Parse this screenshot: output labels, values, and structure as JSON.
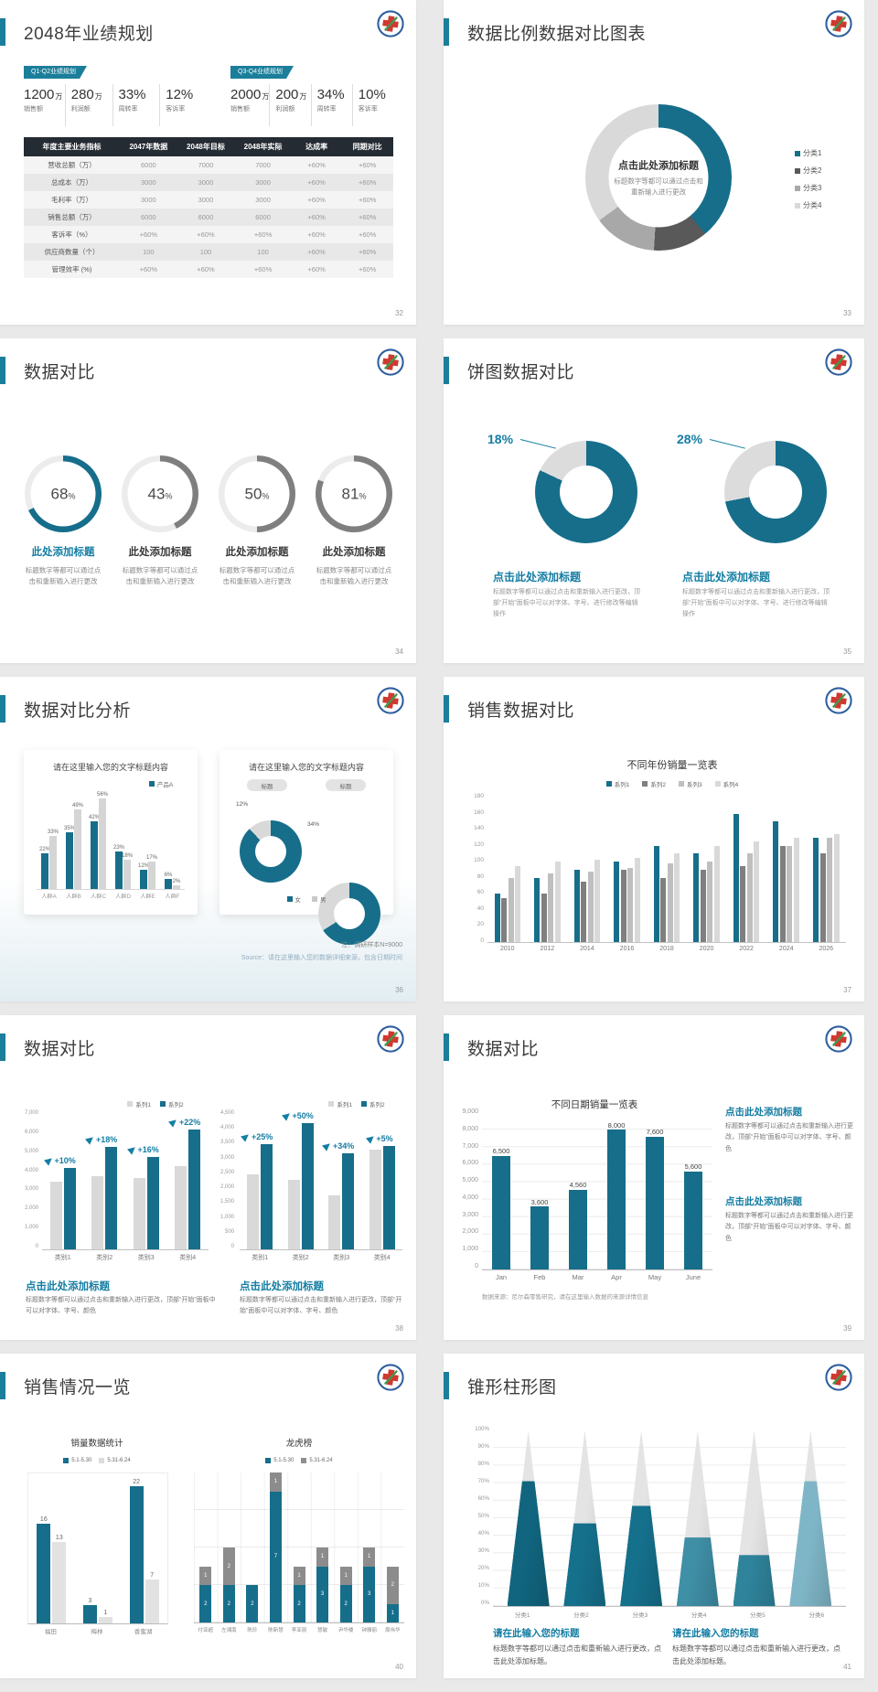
{
  "palette": {
    "teal": "#166e8b",
    "tealText": "#147da3",
    "accent": "#1b7e9b",
    "grayDark": "#595959",
    "gray": "#7f7f7f",
    "grayMid": "#a8a8a8",
    "grayLight": "#d9d9d9",
    "ringRest": "#ececec",
    "tableHeaderBg": "#242b33",
    "pageBg": "#e9e9e9"
  },
  "logo_icon": "medical-cross-badge",
  "slides": [
    {
      "page": "32",
      "title": "2048年业绩规划",
      "groups": [
        {
          "badge": "Q1-Q2业绩规划",
          "stats": [
            {
              "value": "1200",
              "unit": "万",
              "label": "销售额"
            },
            {
              "value": "280",
              "unit": "万",
              "label": "利润额"
            },
            {
              "value": "33%",
              "unit": "",
              "label": "周转率"
            },
            {
              "value": "12%",
              "unit": "",
              "label": "客诉率"
            }
          ]
        },
        {
          "badge": "Q3-Q4业绩规划",
          "stats": [
            {
              "value": "2000",
              "unit": "万",
              "label": "销售额"
            },
            {
              "value": "200",
              "unit": "万",
              "label": "利润额"
            },
            {
              "value": "34%",
              "unit": "",
              "label": "周转率"
            },
            {
              "value": "10%",
              "unit": "",
              "label": "客诉率"
            }
          ]
        }
      ],
      "table": {
        "headers": [
          "年度主要业务指标",
          "2047年数据",
          "2048年目标",
          "2048年实际",
          "达成率",
          "同期对比"
        ],
        "rows": [
          [
            "营收总额（万）",
            "6000",
            "7000",
            "7000",
            "+60%",
            "+60%"
          ],
          [
            "总成本（万）",
            "3000",
            "3000",
            "3000",
            "+60%",
            "+60%"
          ],
          [
            "毛利率（万）",
            "3000",
            "3000",
            "3000",
            "+60%",
            "+60%"
          ],
          [
            "销售总额（万）",
            "6000",
            "6000",
            "6000",
            "+60%",
            "+60%"
          ],
          [
            "客诉率（%）",
            "+60%",
            "+60%",
            "+60%",
            "+60%",
            "+60%"
          ],
          [
            "供应商数量（个）",
            "100",
            "100",
            "100",
            "+60%",
            "+60%"
          ],
          [
            "管理效率 (%)",
            "+60%",
            "+60%",
            "+60%",
            "+60%",
            "+60%"
          ]
        ]
      }
    },
    {
      "page": "33",
      "title": "数据比例数据对比图表",
      "chart": {
        "type": "pie",
        "segments": [
          {
            "label": "分类1",
            "value": 39,
            "color": "#166e8b"
          },
          {
            "label": "分类2",
            "value": 12,
            "color": "#595959"
          },
          {
            "label": "分类3",
            "value": 14,
            "color": "#a8a8a8"
          },
          {
            "label": "分类4",
            "value": 35,
            "color": "#d9d9d9"
          }
        ]
      },
      "center_title": "点击此处添加标题",
      "center_sub": "标题数字等都可以通过点击和重新输入进行更改"
    },
    {
      "page": "34",
      "title": "数据对比",
      "items": [
        {
          "pct": 68,
          "accent": true,
          "title": "此处添加标题"
        },
        {
          "pct": 43,
          "accent": false,
          "title": "此处添加标题"
        },
        {
          "pct": 50,
          "accent": false,
          "title": "此处添加标题"
        },
        {
          "pct": 81,
          "accent": false,
          "title": "此处添加标题"
        }
      ],
      "caption": "标题数字等都可以通过点击和重新输入进行更改"
    },
    {
      "page": "35",
      "title": "饼图数据对比",
      "items": [
        {
          "pct": 18
        },
        {
          "pct": 28
        }
      ],
      "item_title": "点击此处添加标题",
      "item_text": "标题数字等都可以通过点击和重新输入进行更改，顶部“开始”面板中可以对字体、字号、进行修改等编辑操作"
    },
    {
      "page": "36",
      "title": "数据对比分析",
      "card1": {
        "title": "请在这里输入您的文字标题内容",
        "legend": "产品A",
        "categories": [
          "人群A",
          "人群B",
          "人群C",
          "人群D",
          "人群E",
          "人群F"
        ],
        "series": [
          {
            "name": "产品A",
            "values": [
              22,
              35,
              42,
              23,
              12,
              6
            ]
          },
          {
            "name": "系列2",
            "values": [
              33,
              49,
              56,
              18,
              17,
              2
            ]
          }
        ],
        "ymax": 60
      },
      "card2": {
        "title": "请在这里输入您的文字标题内容",
        "pill": "标题",
        "donuts": [
          {
            "gray_pct": 12
          },
          {
            "gray_pct": 34
          }
        ],
        "legend": [
          "女",
          "男"
        ]
      },
      "note": "注：调研样本N=9000",
      "source": "Source：请在这里输入您的数据详细来源，包含日期时间"
    },
    {
      "page": "37",
      "title": "销售数据对比",
      "chart": {
        "type": "bar",
        "title": "不同年份销量一览表",
        "legend": [
          "系列1",
          "系列2",
          "系列3",
          "系列4"
        ],
        "categories": [
          "2010",
          "2012",
          "2014",
          "2016",
          "2018",
          "2020",
          "2022",
          "2024",
          "2026"
        ],
        "series": [
          {
            "name": "系列1",
            "values": [
              60,
              80,
              90,
              100,
              120,
              110,
              160,
              150,
              130
            ]
          },
          {
            "name": "系列2",
            "values": [
              55,
              60,
              75,
              90,
              80,
              90,
              95,
              120,
              110
            ]
          },
          {
            "name": "系列3",
            "values": [
              80,
              85,
              88,
              92,
              98,
              100,
              110,
              120,
              130
            ]
          },
          {
            "name": "系列4",
            "values": [
              95,
              100,
              103,
              105,
              110,
              120,
              125,
              130,
              135
            ]
          }
        ],
        "ymax": 180,
        "yticks": [
          "180",
          "160",
          "140",
          "120",
          "100",
          "80",
          "60",
          "40",
          "20",
          "0"
        ]
      }
    },
    {
      "page": "38",
      "title": "数据对比",
      "legend": [
        "系列1",
        "系列2"
      ],
      "charts": [
        {
          "ymax": 7000,
          "yticks": [
            "7,000",
            "6,000",
            "5,000",
            "4,000",
            "3,000",
            "2,000",
            "1,000",
            "0"
          ],
          "categories": [
            "类别1",
            "类别2",
            "类别3",
            "类别4"
          ],
          "gray": [
            3500,
            3800,
            3700,
            4300
          ],
          "teal": [
            4200,
            5300,
            4800,
            6200
          ],
          "growth": [
            "+10%",
            "+18%",
            "+16%",
            "+22%"
          ]
        },
        {
          "ymax": 4500,
          "yticks": [
            "4,500",
            "4,000",
            "3,500",
            "3,000",
            "2,500",
            "2,000",
            "1,500",
            "1,000",
            "500",
            "0"
          ],
          "categories": [
            "类别1",
            "类别2",
            "类别3",
            "类别4"
          ],
          "gray": [
            2500,
            2300,
            1800,
            3300
          ],
          "teal": [
            3500,
            4200,
            3200,
            3450
          ],
          "growth": [
            "+25%",
            "+50%",
            "+34%",
            "+5%"
          ]
        }
      ],
      "block_title": "点击此处添加标题",
      "block_text": "标题数字等都可以通过点击和重新输入进行更改，顶部“开始”面板中可以对字体、字号、颜色"
    },
    {
      "page": "39",
      "title": "数据对比",
      "chart": {
        "type": "bar",
        "title": "不同日期销量一览表",
        "categories": [
          "Jan",
          "Feb",
          "Mar",
          "Apr",
          "May",
          "June"
        ],
        "values": [
          6500,
          3600,
          4560,
          8000,
          7600,
          5600
        ],
        "labels": [
          "6,500",
          "3,600",
          "4,560",
          "8,000",
          "7,600",
          "5,600"
        ],
        "ymax": 9000,
        "yticks": [
          "9,000",
          "8,000",
          "7,000",
          "6,000",
          "5,000",
          "4,000",
          "3,000",
          "2,000",
          "1,000",
          "0"
        ]
      },
      "note": "数据来源：尼尔森零售研究，请在这里输入数据的来源详情信息",
      "blocks": [
        {
          "title": "点击此处添加标题",
          "text": "标题数字等都可以通过点击和重新输入进行更改，顶部“开始”面板中可以对字体、字号、颜色"
        },
        {
          "title": "点击此处添加标题",
          "text": "标题数字等都可以通过点击和重新输入进行更改，顶部“开始”面板中可以对字体、字号、颜色"
        }
      ]
    },
    {
      "page": "40",
      "title": "销售情况一览",
      "chart1": {
        "title": "销量数据统计",
        "legend": [
          "5.1-5.30",
          "5.31-6.24"
        ],
        "categories": [
          "福田",
          "梅林",
          "香蜜湖"
        ],
        "series": [
          {
            "name": "5.1-5.30",
            "values": [
              16,
              3,
              22
            ]
          },
          {
            "name": "5.31-6.24",
            "values": [
              13,
              1,
              7
            ]
          }
        ],
        "ymax": 24
      },
      "chart2": {
        "title": "龙虎榜",
        "legend": [
          "5.1-5.30",
          "5.31-6.24"
        ],
        "categories": [
          "付亚超",
          "左湘南",
          "陈珍",
          "陈新慧",
          "李亚丽",
          "慧敏",
          "尹华楼",
          "钟雅丽",
          "周伟华"
        ],
        "series": [
          {
            "name": "5.1-5.30",
            "values": [
              2,
              2,
              2,
              7,
              2,
              3,
              2,
              3,
              1
            ]
          },
          {
            "name": "5.31-6.24",
            "values": [
              1,
              2,
              0,
              1,
              1,
              1,
              1,
              1,
              2
            ]
          }
        ],
        "ymax": 8
      }
    },
    {
      "page": "41",
      "title": "锥形柱形图",
      "chart": {
        "type": "cone",
        "categories": [
          "分类1",
          "分类2",
          "分类3",
          "分类4",
          "分类5",
          "分类6"
        ],
        "values": [
          71,
          47,
          57,
          39,
          29,
          71
        ],
        "colors": [
          "#11657f",
          "#15708c",
          "#15708c",
          "#3f8fa6",
          "#2f849c",
          "#7fb6c7"
        ],
        "yticks": [
          "100%",
          "90%",
          "80%",
          "70%",
          "60%",
          "50%",
          "40%",
          "30%",
          "20%",
          "10%",
          "0%"
        ]
      },
      "blocks": [
        {
          "title": "请在此输入您的标题",
          "text": "标题数字等都可以通过点击和重新输入进行更改，点击此处添加标题。"
        },
        {
          "title": "请在此输入您的标题",
          "text": "标题数字等都可以通过点击和重新输入进行更改，点击此处添加标题。"
        }
      ]
    }
  ]
}
